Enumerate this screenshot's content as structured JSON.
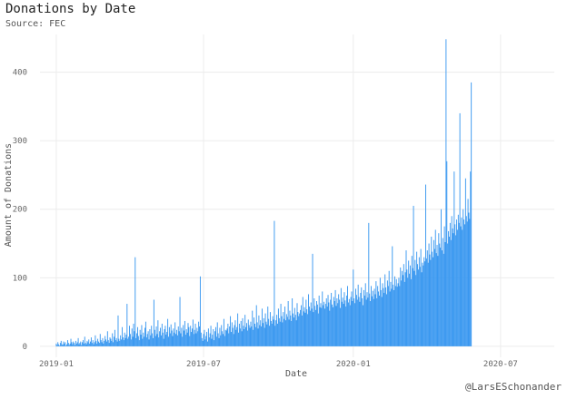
{
  "chart_data": {
    "type": "bar",
    "title": "Donations by Date",
    "subtitle": "Source: FEC",
    "x_label": "Date",
    "y_label": "Amount of Donations",
    "caption": "@LarsESchonander",
    "color": "#3a98f0",
    "grid": true,
    "xlim": [
      -20,
      612
    ],
    "ylim": [
      -16,
      455
    ],
    "yticks": [
      0,
      100,
      200,
      300,
      400
    ],
    "xticks": [
      {
        "value": 0,
        "label": "2019-01"
      },
      {
        "value": 181,
        "label": "2019-07"
      },
      {
        "value": 365,
        "label": "2020-01"
      },
      {
        "value": 546,
        "label": "2020-07"
      }
    ],
    "values": [
      4,
      2,
      6,
      3,
      1,
      5,
      8,
      3,
      2,
      7,
      4,
      6,
      1,
      3,
      9,
      5,
      2,
      4,
      11,
      6,
      3,
      7,
      5,
      2,
      8,
      4,
      6,
      12,
      3,
      5,
      7,
      2,
      6,
      9,
      4,
      14,
      5,
      3,
      8,
      6,
      10,
      4,
      7,
      13,
      5,
      9,
      3,
      6,
      16,
      8,
      4,
      11,
      7,
      5,
      18,
      9,
      6,
      12,
      4,
      8,
      15,
      10,
      7,
      22,
      9,
      5,
      13,
      11,
      8,
      19,
      6,
      14,
      24,
      9,
      12,
      7,
      45,
      11,
      8,
      16,
      10,
      28,
      13,
      9,
      20,
      12,
      17,
      62,
      11,
      14,
      30,
      18,
      10,
      26,
      14,
      33,
      22,
      130,
      12,
      19,
      28,
      15,
      9,
      24,
      17,
      31,
      11,
      20,
      14,
      27,
      36,
      13,
      18,
      22,
      10,
      25,
      16,
      30,
      19,
      12,
      68,
      24,
      15,
      29,
      18,
      38,
      13,
      22,
      27,
      16,
      33,
      20,
      11,
      25,
      30,
      17,
      21,
      40,
      14,
      28,
      19,
      32,
      23,
      15,
      26,
      20,
      35,
      18,
      24,
      16,
      29,
      22,
      72,
      19,
      27,
      14,
      31,
      23,
      37,
      17,
      25,
      20,
      34,
      28,
      15,
      30,
      21,
      26,
      39,
      18,
      24,
      33,
      19,
      27,
      22,
      36,
      29,
      102,
      20,
      12,
      8,
      18,
      24,
      10,
      15,
      21,
      7,
      26,
      13,
      19,
      30,
      11,
      17,
      25,
      9,
      22,
      28,
      14,
      35,
      19,
      12,
      27,
      16,
      31,
      22,
      18,
      40,
      15,
      24,
      23,
      26,
      33,
      19,
      29,
      44,
      21,
      35,
      27,
      18,
      31,
      38,
      24,
      28,
      48,
      20,
      33,
      26,
      37,
      22,
      41,
      30,
      25,
      46,
      28,
      34,
      23,
      39,
      31,
      27,
      36,
      29,
      52,
      24,
      42,
      33,
      28,
      60,
      35,
      26,
      45,
      31,
      38,
      29,
      55,
      34,
      41,
      27,
      48,
      36,
      32,
      58,
      40,
      30,
      50,
      37,
      33,
      44,
      39,
      183,
      30,
      38,
      46,
      33,
      55,
      41,
      36,
      62,
      44,
      35,
      50,
      40,
      58,
      38,
      47,
      43,
      66,
      39,
      52,
      45,
      37,
      70,
      48,
      42,
      56,
      46,
      38,
      63,
      50,
      44,
      48,
      53,
      60,
      45,
      72,
      51,
      57,
      49,
      68,
      54,
      47,
      76,
      58,
      52,
      64,
      55,
      135,
      50,
      70,
      59,
      53,
      66,
      61,
      48,
      74,
      57,
      63,
      56,
      80,
      60,
      65,
      55,
      62,
      70,
      58,
      75,
      64,
      52,
      68,
      78,
      61,
      57,
      72,
      66,
      82,
      59,
      70,
      63,
      76,
      68,
      56,
      85,
      65,
      71,
      62,
      79,
      67,
      58,
      74,
      88,
      64,
      69,
      60,
      72,
      80,
      66,
      112,
      70,
      63,
      84,
      75,
      68,
      90,
      72,
      65,
      78,
      86,
      70,
      60,
      82,
      74,
      92,
      68,
      79,
      71,
      180,
      77,
      66,
      88,
      73,
      81,
      69,
      84,
      76,
      95,
      70,
      88,
      80,
      74,
      100,
      82,
      72,
      92,
      85,
      78,
      105,
      86,
      76,
      96,
      88,
      110,
      80,
      94,
      84,
      146,
      90,
      82,
      102,
      88,
      98,
      87,
      92,
      100,
      88,
      115,
      96,
      110,
      104,
      120,
      94,
      108,
      140,
      112,
      100,
      125,
      106,
      118,
      98,
      132,
      114,
      205,
      110,
      126,
      104,
      138,
      120,
      112,
      130,
      116,
      142,
      108,
      122,
      118,
      130,
      124,
      236,
      128,
      140,
      122,
      150,
      134,
      126,
      160,
      138,
      130,
      155,
      142,
      170,
      136,
      148,
      132,
      165,
      150,
      144,
      200,
      140,
      158,
      135,
      175,
      152,
      448,
      270,
      150,
      168,
      160,
      180,
      155,
      190,
      172,
      165,
      255,
      178,
      162,
      185,
      170,
      192,
      180,
      340,
      175,
      188,
      170,
      200,
      185,
      178,
      245,
      190,
      182,
      215,
      195,
      186,
      255,
      385
    ]
  }
}
